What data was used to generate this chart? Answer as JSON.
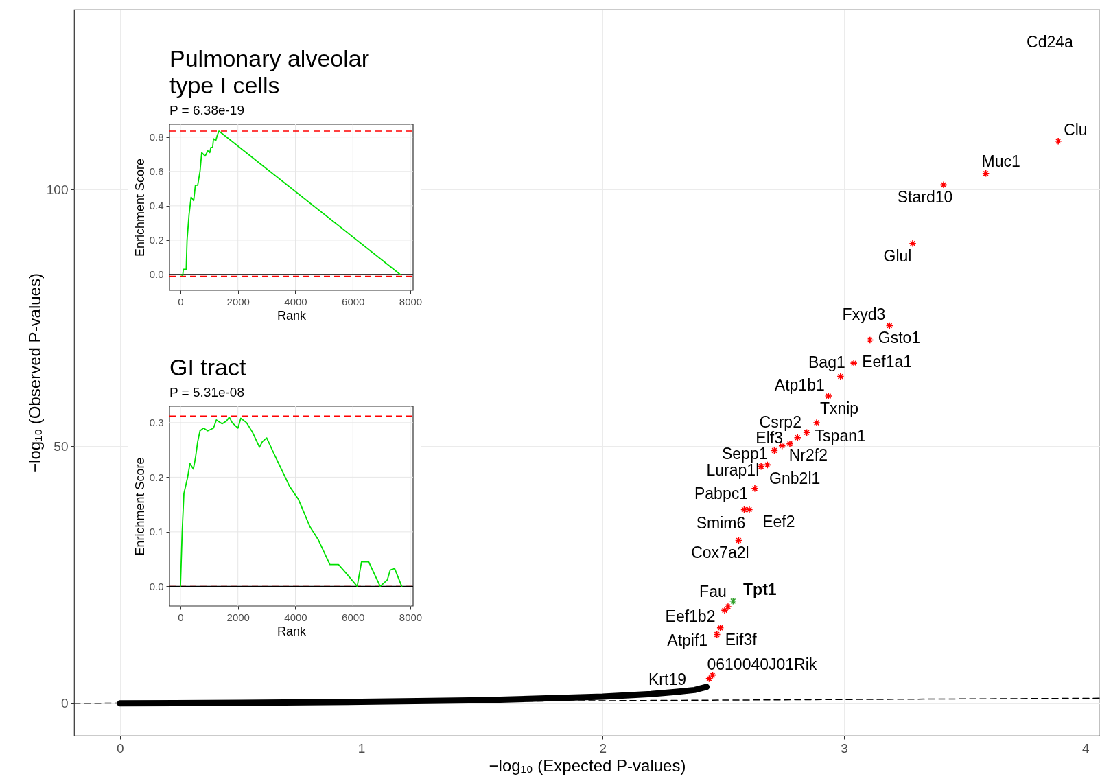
{
  "chart_data": [
    {
      "type": "scatter",
      "xlabel": "−log₁₀ (Expected P-values)",
      "ylabel": "−log₁₀ (Observed P-values)",
      "xlim": [
        -0.19,
        4.06
      ],
      "ylim": [
        -6.3,
        135
      ],
      "xticks": [
        0,
        1,
        2,
        3,
        4
      ],
      "yticks": [
        0,
        50,
        100
      ],
      "grid": true,
      "marker": "cross",
      "series": [
        {
          "type": "line",
          "line_style": "dashed",
          "marker": "none",
          "color": "#000000",
          "x": [
            -0.19,
            4.06
          ],
          "values": [
            0,
            1.0
          ]
        },
        {
          "type": "line",
          "marker": "none",
          "color": "#000000",
          "x": [
            0,
            0.5,
            1.0,
            1.5,
            2.0,
            2.2,
            2.3,
            2.38,
            2.43
          ],
          "values": [
            0,
            0.1,
            0.3,
            0.6,
            1.3,
            1.8,
            2.2,
            2.6,
            3.2
          ]
        },
        {
          "name": "Clu",
          "color": "#ff0000",
          "x": [
            3.887
          ],
          "values": [
            109.4
          ]
        },
        {
          "name": "Muc1",
          "color": "#ff0000",
          "x": [
            3.587
          ],
          "values": [
            103.1
          ]
        },
        {
          "name": "Stard10",
          "color": "#ff0000",
          "x": [
            3.412
          ],
          "values": [
            100.9
          ]
        },
        {
          "name": "Glul",
          "color": "#ff0000",
          "x": [
            3.284
          ],
          "values": [
            89.5
          ]
        },
        {
          "name": "Fxyd3",
          "color": "#ff0000",
          "x": [
            3.188
          ],
          "values": [
            73.5
          ]
        },
        {
          "name": "Gsto1",
          "color": "#ff0000",
          "x": [
            3.107
          ],
          "values": [
            70.7
          ]
        },
        {
          "name": "Eef1a1",
          "color": "#ff0000",
          "x": [
            3.04
          ],
          "values": [
            66.2
          ]
        },
        {
          "name": "Bag1",
          "color": "#ff0000",
          "x": [
            2.985
          ],
          "values": [
            63.6
          ]
        },
        {
          "name": "Atp1b1",
          "color": "#ff0000",
          "x": [
            2.935
          ],
          "values": [
            59.8
          ]
        },
        {
          "name": "Txnip",
          "color": "#ff0000",
          "x": [
            2.886
          ],
          "values": [
            54.6
          ]
        },
        {
          "name": "Tspan1",
          "color": "#ff0000",
          "x": [
            2.845
          ],
          "values": [
            52.7
          ]
        },
        {
          "name": "Csrp2",
          "color": "#ff0000",
          "x": [
            2.807
          ],
          "values": [
            51.7
          ]
        },
        {
          "name": "Elf3",
          "color": "#ff0000",
          "x": [
            2.775
          ],
          "values": [
            50.5
          ]
        },
        {
          "name": "Nr2f2",
          "color": "#ff0000",
          "x": [
            2.743
          ],
          "values": [
            50.1
          ]
        },
        {
          "name": "Sepp1",
          "color": "#ff0000",
          "x": [
            2.711
          ],
          "values": [
            49.2
          ]
        },
        {
          "name": "Lurap1l",
          "color": "#ff0000",
          "x": [
            2.682
          ],
          "values": [
            46.4
          ]
        },
        {
          "name": "Gnb2l1",
          "color": "#ff0000",
          "x": [
            2.656
          ],
          "values": [
            46.1
          ]
        },
        {
          "name": "Pabpc1",
          "color": "#ff0000",
          "x": [
            2.63
          ],
          "values": [
            41.8
          ]
        },
        {
          "name": "Eef2",
          "color": "#ff0000",
          "x": [
            2.607
          ],
          "values": [
            37.7
          ]
        },
        {
          "name": "Smim6",
          "color": "#ff0000",
          "x": [
            2.586
          ],
          "values": [
            37.7
          ]
        },
        {
          "name": "Cox7a2l",
          "color": "#ff0000",
          "x": [
            2.563
          ],
          "values": [
            31.7
          ]
        },
        {
          "name": "Tpt1",
          "color": "#33a02c",
          "x": [
            2.54
          ],
          "values": [
            19.9
          ]
        },
        {
          "name": "Fau",
          "color": "#ff0000",
          "x": [
            2.519
          ],
          "values": [
            18.8
          ]
        },
        {
          "name": "Eef1b2",
          "color": "#ff0000",
          "x": [
            2.505
          ],
          "values": [
            18.1
          ]
        },
        {
          "name": "Eif3f",
          "color": "#ff0000",
          "x": [
            2.487
          ],
          "values": [
            14.7
          ]
        },
        {
          "name": "Atpif1",
          "color": "#ff0000",
          "x": [
            2.473
          ],
          "values": [
            13.4
          ]
        },
        {
          "name": "0610040J01Rik",
          "color": "#ff0000",
          "x": [
            2.455
          ],
          "values": [
            5.5
          ]
        },
        {
          "name": "Krt19",
          "color": "#ff0000",
          "x": [
            2.441
          ],
          "values": [
            4.8
          ]
        }
      ],
      "annotations": [
        "Cd24a"
      ]
    },
    {
      "type": "line",
      "title": "Pulmonary alveolar type I cells",
      "subtitle": "P = 6.38e-19",
      "xlabel": "Rank",
      "ylabel": "Enrichment Score",
      "xlim": [
        -381,
        8095
      ],
      "ylim": [
        -0.092,
        0.875
      ],
      "xticks": [
        0,
        2000,
        4000,
        6000,
        8000
      ],
      "yticks": [
        {
          "value": 0,
          "label": "0.0"
        },
        0.2,
        0.4,
        0.6,
        0.8
      ],
      "grid": true,
      "ref_lines": [
        {
          "axis": "y",
          "value": 0,
          "color": "#000000",
          "line_style": "solid"
        },
        {
          "axis": "y",
          "value": 0.835,
          "color": "#ff0000",
          "line_style": "dashed"
        },
        {
          "axis": "y",
          "value": -0.01,
          "color": "#ff0000",
          "line_style": "dashed"
        }
      ],
      "series": [
        {
          "color": "#00e000",
          "x": [
            0,
            80,
            100,
            200,
            230,
            300,
            370,
            460,
            520,
            600,
            680,
            740,
            860,
            950,
            1020,
            1060,
            1120,
            1150,
            1230,
            1280,
            1340,
            7650
          ],
          "values": [
            0,
            -0.005,
            0.03,
            0.03,
            0.2,
            0.35,
            0.45,
            0.43,
            0.52,
            0.52,
            0.6,
            0.71,
            0.69,
            0.72,
            0.71,
            0.74,
            0.74,
            0.79,
            0.78,
            0.81,
            0.835,
            0.0
          ]
        }
      ]
    },
    {
      "type": "line",
      "title": "GI tract",
      "subtitle": "P = 5.31e-08",
      "xlabel": "Rank",
      "ylabel": "Enrichment Score",
      "xlim": [
        -381,
        8095
      ],
      "ylim": [
        -0.036,
        0.33
      ],
      "xticks": [
        0,
        2000,
        4000,
        6000,
        8000
      ],
      "yticks": [
        {
          "value": 0,
          "label": "0.0"
        },
        0.1,
        0.2,
        0.3
      ],
      "grid": true,
      "ref_lines": [
        {
          "axis": "y",
          "value": 0.312,
          "color": "#ff0000",
          "line_style": "dashed"
        },
        {
          "axis": "y",
          "value": 0,
          "color": "#ff0000",
          "line_style": "dashed"
        },
        {
          "axis": "y",
          "value": 0,
          "color": "#000000",
          "line_style": "solid"
        }
      ],
      "series": [
        {
          "color": "#00e000",
          "x": [
            0,
            60,
            120,
            250,
            330,
            450,
            520,
            600,
            680,
            800,
            950,
            1150,
            1250,
            1450,
            1600,
            1700,
            1800,
            2000,
            2100,
            2300,
            2500,
            2750,
            2850,
            3000,
            3300,
            3800,
            4100,
            4500,
            4800,
            5200,
            5500,
            5800,
            6150,
            6300,
            6550,
            6950,
            7200,
            7300,
            7450,
            7700
          ],
          "values": [
            0,
            0.1,
            0.17,
            0.2,
            0.225,
            0.215,
            0.235,
            0.265,
            0.285,
            0.29,
            0.285,
            0.29,
            0.305,
            0.298,
            0.303,
            0.31,
            0.3,
            0.29,
            0.308,
            0.3,
            0.283,
            0.255,
            0.265,
            0.272,
            0.238,
            0.183,
            0.16,
            0.11,
            0.085,
            0.04,
            0.04,
            0.022,
            0.0,
            0.045,
            0.045,
            0.0,
            0.012,
            0.03,
            0.033,
            0.0
          ]
        }
      ]
    }
  ]
}
